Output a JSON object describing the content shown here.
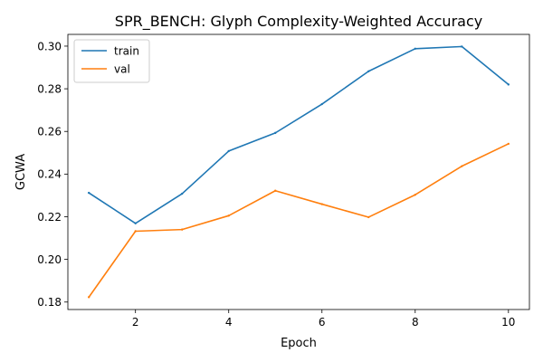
{
  "chart_data": {
    "type": "line",
    "title": "SPR_BENCH: Glyph Complexity-Weighted Accuracy",
    "xlabel": "Epoch",
    "ylabel": "GCWA",
    "x": [
      1,
      2,
      3,
      4,
      5,
      6,
      7,
      8,
      9,
      10
    ],
    "xlim": [
      0.55,
      10.45
    ],
    "ylim": [
      0.1765,
      0.3055
    ],
    "xticks": [
      2,
      4,
      6,
      8,
      10
    ],
    "yticks": [
      0.18,
      0.2,
      0.22,
      0.24,
      0.26,
      0.28,
      0.3
    ],
    "ytick_labels": [
      "0.18",
      "0.20",
      "0.22",
      "0.24",
      "0.26",
      "0.28",
      "0.30"
    ],
    "grid": false,
    "legend_position": "upper-left",
    "series": [
      {
        "name": "train",
        "color": "#1f77b4",
        "values": [
          0.2312,
          0.2169,
          0.2308,
          0.2508,
          0.2593,
          0.2728,
          0.2882,
          0.2988,
          0.2998,
          0.282
        ]
      },
      {
        "name": "val",
        "color": "#ff7f0e",
        "values": [
          0.1823,
          0.2132,
          0.214,
          0.2205,
          0.2322,
          0.2259,
          0.2198,
          0.2303,
          0.2437,
          0.2542
        ]
      }
    ]
  }
}
